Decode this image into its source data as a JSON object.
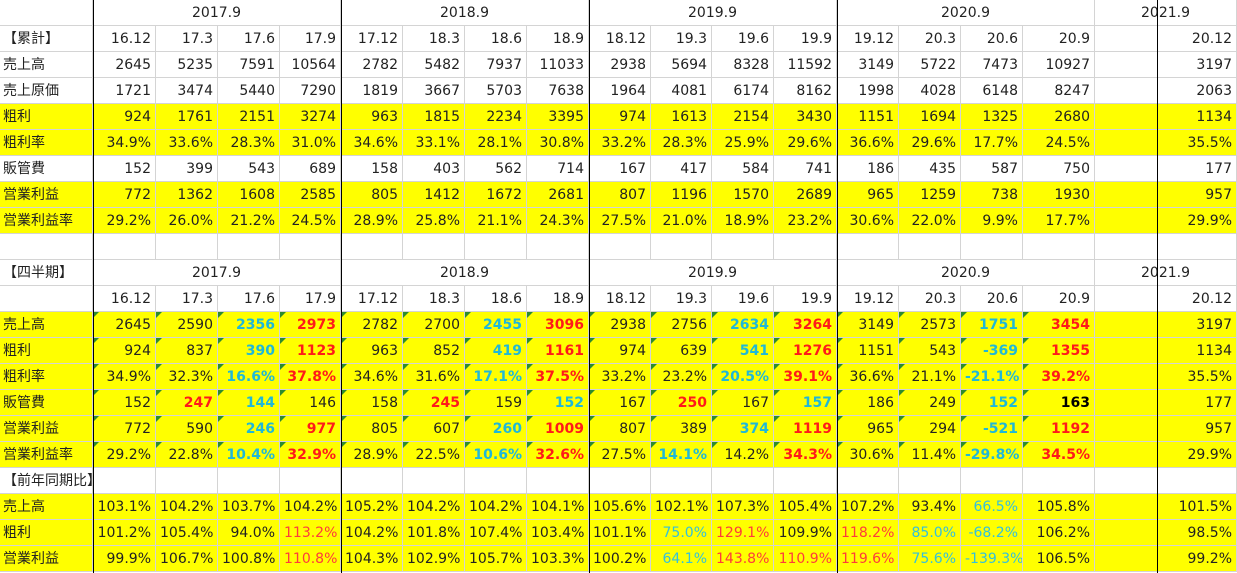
{
  "years": [
    "2017.9",
    "2018.9",
    "2019.9",
    "2020.9",
    "2021.9"
  ],
  "periods": [
    "16.12",
    "17.3",
    "17.6",
    "17.9",
    "17.12",
    "18.3",
    "18.6",
    "18.9",
    "18.12",
    "19.3",
    "19.6",
    "19.9",
    "19.12",
    "20.3",
    "20.6",
    "20.9",
    "20.12"
  ],
  "sections": [
    {
      "title": "【累計】",
      "rows": [
        {
          "label": "売上高",
          "yellow": false,
          "cells": [
            "2645",
            "5235",
            "7591",
            "10564",
            "2782",
            "5482",
            "7937",
            "11033",
            "2938",
            "5694",
            "8328",
            "11592",
            "3149",
            "5722",
            "7473",
            "10927",
            "3197"
          ]
        },
        {
          "label": "売上原価",
          "yellow": false,
          "cells": [
            "1721",
            "3474",
            "5440",
            "7290",
            "1819",
            "3667",
            "5703",
            "7638",
            "1964",
            "4081",
            "6174",
            "8162",
            "1998",
            "4028",
            "6148",
            "8247",
            "2063"
          ]
        },
        {
          "label": "粗利",
          "yellow": true,
          "cells": [
            "924",
            "1761",
            "2151",
            "3274",
            "963",
            "1815",
            "2234",
            "3395",
            "974",
            "1613",
            "2154",
            "3430",
            "1151",
            "1694",
            "1325",
            "2680",
            "1134"
          ]
        },
        {
          "label": "粗利率",
          "yellow": true,
          "cells": [
            "34.9%",
            "33.6%",
            "28.3%",
            "31.0%",
            "34.6%",
            "33.1%",
            "28.1%",
            "30.8%",
            "33.2%",
            "28.3%",
            "25.9%",
            "29.6%",
            "36.6%",
            "29.6%",
            "17.7%",
            "24.5%",
            "35.5%"
          ]
        },
        {
          "label": "販管費",
          "yellow": false,
          "cells": [
            "152",
            "399",
            "543",
            "689",
            "158",
            "403",
            "562",
            "714",
            "167",
            "417",
            "584",
            "741",
            "186",
            "435",
            "587",
            "750",
            "177"
          ]
        },
        {
          "label": "営業利益",
          "yellow": true,
          "cells": [
            "772",
            "1362",
            "1608",
            "2585",
            "805",
            "1412",
            "1672",
            "2681",
            "807",
            "1196",
            "1570",
            "2689",
            "965",
            "1259",
            "738",
            "1930",
            "957"
          ]
        },
        {
          "label": "営業利益率",
          "yellow": true,
          "cells": [
            "29.2%",
            "26.0%",
            "21.2%",
            "24.5%",
            "28.9%",
            "25.8%",
            "21.1%",
            "24.3%",
            "27.5%",
            "21.0%",
            "18.9%",
            "23.2%",
            "30.6%",
            "22.0%",
            "9.9%",
            "17.7%",
            "29.9%"
          ]
        }
      ]
    },
    {
      "title": "【四半期】",
      "rows": [
        {
          "label": "売上高",
          "yellow": true,
          "cells": [
            "2645",
            "2590",
            "2356",
            "2973",
            "2782",
            "2700",
            "2455",
            "3096",
            "2938",
            "2756",
            "2634",
            "3264",
            "3149",
            "2573",
            "1751",
            "3454",
            "3197"
          ],
          "styles": [
            "",
            "",
            "cyan",
            "red",
            "",
            "",
            "cyan",
            "red",
            "",
            "",
            "cyan",
            "red",
            "",
            "",
            "cyan",
            "red",
            ""
          ]
        },
        {
          "label": "粗利",
          "yellow": true,
          "cells": [
            "924",
            "837",
            "390",
            "1123",
            "963",
            "852",
            "419",
            "1161",
            "974",
            "639",
            "541",
            "1276",
            "1151",
            "543",
            "-369",
            "1355",
            "1134"
          ],
          "styles": [
            "",
            "",
            "cyan",
            "red",
            "",
            "",
            "cyan",
            "red",
            "",
            "",
            "cyan",
            "red",
            "",
            "",
            "cyan",
            "red",
            ""
          ]
        },
        {
          "label": "粗利率",
          "yellow": true,
          "cells": [
            "34.9%",
            "32.3%",
            "16.6%",
            "37.8%",
            "34.6%",
            "31.6%",
            "17.1%",
            "37.5%",
            "33.2%",
            "23.2%",
            "20.5%",
            "39.1%",
            "36.6%",
            "21.1%",
            "-21.1%",
            "39.2%",
            "35.5%"
          ],
          "styles": [
            "",
            "",
            "cyan",
            "red",
            "",
            "",
            "cyan",
            "red",
            "",
            "",
            "cyan",
            "red",
            "",
            "",
            "cyan",
            "red",
            ""
          ]
        },
        {
          "label": "販管費",
          "yellow": true,
          "cells": [
            "152",
            "247",
            "144",
            "146",
            "158",
            "245",
            "159",
            "152",
            "167",
            "250",
            "167",
            "157",
            "186",
            "249",
            "152",
            "163",
            "177"
          ],
          "styles": [
            "",
            "red",
            "cyan",
            "",
            "",
            "red",
            "",
            "cyan",
            "",
            "red",
            "",
            "cyan",
            "",
            "",
            "cyan",
            "black",
            ""
          ]
        },
        {
          "label": "営業利益",
          "yellow": true,
          "cells": [
            "772",
            "590",
            "246",
            "977",
            "805",
            "607",
            "260",
            "1009",
            "807",
            "389",
            "374",
            "1119",
            "965",
            "294",
            "-521",
            "1192",
            "957"
          ],
          "styles": [
            "",
            "",
            "cyan",
            "red",
            "",
            "",
            "cyan",
            "red",
            "",
            "",
            "cyan",
            "red",
            "",
            "",
            "cyan",
            "red",
            ""
          ]
        },
        {
          "label": "営業利益率",
          "yellow": true,
          "cells": [
            "29.2%",
            "22.8%",
            "10.4%",
            "32.9%",
            "28.9%",
            "22.5%",
            "10.6%",
            "32.6%",
            "27.5%",
            "14.1%",
            "14.2%",
            "34.3%",
            "30.6%",
            "11.4%",
            "-29.8%",
            "34.5%",
            "29.9%"
          ],
          "styles": [
            "",
            "",
            "cyan",
            "red",
            "",
            "",
            "cyan",
            "red",
            "",
            "cyan",
            "",
            "red",
            "",
            "",
            "cyan",
            "red",
            ""
          ]
        }
      ]
    },
    {
      "title": "【前年同期比】",
      "rows": [
        {
          "label": "売上高",
          "yellow": true,
          "cells": [
            "103.1%",
            "104.2%",
            "103.7%",
            "104.2%",
            "105.2%",
            "104.2%",
            "104.2%",
            "104.1%",
            "105.6%",
            "102.1%",
            "107.3%",
            "105.4%",
            "107.2%",
            "93.4%",
            "66.5%",
            "105.8%",
            "101.5%"
          ],
          "styles": [
            "",
            "",
            "",
            "",
            "",
            "",
            "",
            "",
            "",
            "",
            "",
            "",
            "",
            "",
            "cyanL",
            "",
            ""
          ]
        },
        {
          "label": "粗利",
          "yellow": true,
          "cells": [
            "101.2%",
            "105.4%",
            "94.0%",
            "113.2%",
            "104.2%",
            "101.8%",
            "107.4%",
            "103.4%",
            "101.1%",
            "75.0%",
            "129.1%",
            "109.9%",
            "118.2%",
            "85.0%",
            "-68.2%",
            "106.2%",
            "98.5%"
          ],
          "styles": [
            "",
            "",
            "",
            "redL",
            "",
            "",
            "",
            "",
            "",
            "cyanL",
            "redL",
            "",
            "redL",
            "cyanL",
            "cyanL",
            "",
            ""
          ]
        },
        {
          "label": "営業利益",
          "yellow": true,
          "cells": [
            "99.9%",
            "106.7%",
            "100.8%",
            "110.8%",
            "104.3%",
            "102.9%",
            "105.7%",
            "103.3%",
            "100.2%",
            "64.1%",
            "143.8%",
            "110.9%",
            "119.6%",
            "75.6%",
            "-139.3%",
            "106.5%",
            "99.2%"
          ],
          "styles": [
            "",
            "",
            "",
            "redL",
            "",
            "",
            "",
            "",
            "",
            "cyanL",
            "redL",
            "redL",
            "redL",
            "cyanL",
            "cyanL",
            "",
            ""
          ]
        }
      ]
    }
  ]
}
